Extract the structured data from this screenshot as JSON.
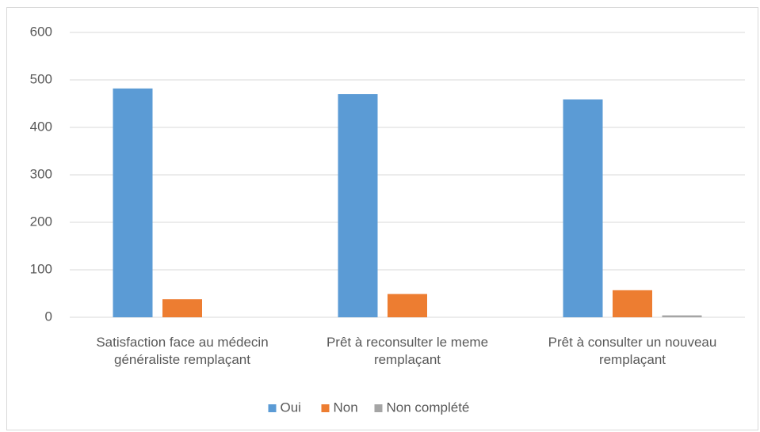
{
  "chart_data": {
    "type": "bar",
    "categories": [
      "Satisfaction face au médecin généraliste remplaçant",
      "Prêt à reconsulter le meme remplaçant",
      "Prêt à consulter un nouveau remplaçant"
    ],
    "series": [
      {
        "name": "Oui",
        "color": "#5b9bd5",
        "values": [
          482,
          470,
          459
        ]
      },
      {
        "name": "Non",
        "color": "#ed7d31",
        "values": [
          38,
          49,
          57
        ]
      },
      {
        "name": "Non complété",
        "color": "#a5a5a5",
        "values": [
          0,
          0,
          4
        ]
      }
    ],
    "ylim": [
      0,
      600
    ],
    "yticks": [
      0,
      100,
      200,
      300,
      400,
      500,
      600
    ],
    "grid": true,
    "legend": "bottom"
  }
}
